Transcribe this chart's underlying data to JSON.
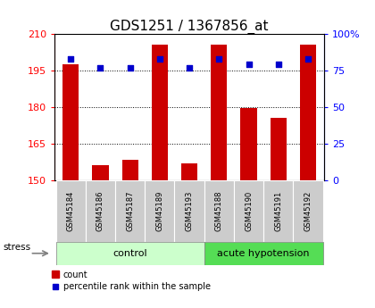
{
  "title": "GDS1251 / 1367856_at",
  "samples": [
    "GSM45184",
    "GSM45186",
    "GSM45187",
    "GSM45189",
    "GSM45193",
    "GSM45188",
    "GSM45190",
    "GSM45191",
    "GSM45192"
  ],
  "count_values": [
    197.5,
    156.0,
    158.5,
    205.5,
    157.0,
    205.5,
    179.5,
    175.5,
    205.5
  ],
  "percentile_values": [
    83,
    77,
    77,
    83,
    77,
    83,
    79,
    79,
    83
  ],
  "ylim_left": [
    150,
    210
  ],
  "ylim_right": [
    0,
    100
  ],
  "yticks_left": [
    150,
    165,
    180,
    195,
    210
  ],
  "yticks_right": [
    0,
    25,
    50,
    75,
    100
  ],
  "bar_color": "#cc0000",
  "dot_color": "#0000cc",
  "bar_width": 0.55,
  "control_count": 5,
  "control_label": "control",
  "acute_label": "acute hypotension",
  "control_color": "#ccffcc",
  "acute_color": "#55dd55",
  "sample_box_color": "#cccccc",
  "legend_count_label": "count",
  "legend_pct_label": "percentile rank within the sample",
  "stress_label": "stress",
  "title_fontsize": 11,
  "tick_fontsize": 8,
  "sample_fontsize": 6,
  "group_fontsize": 8,
  "legend_fontsize": 7
}
